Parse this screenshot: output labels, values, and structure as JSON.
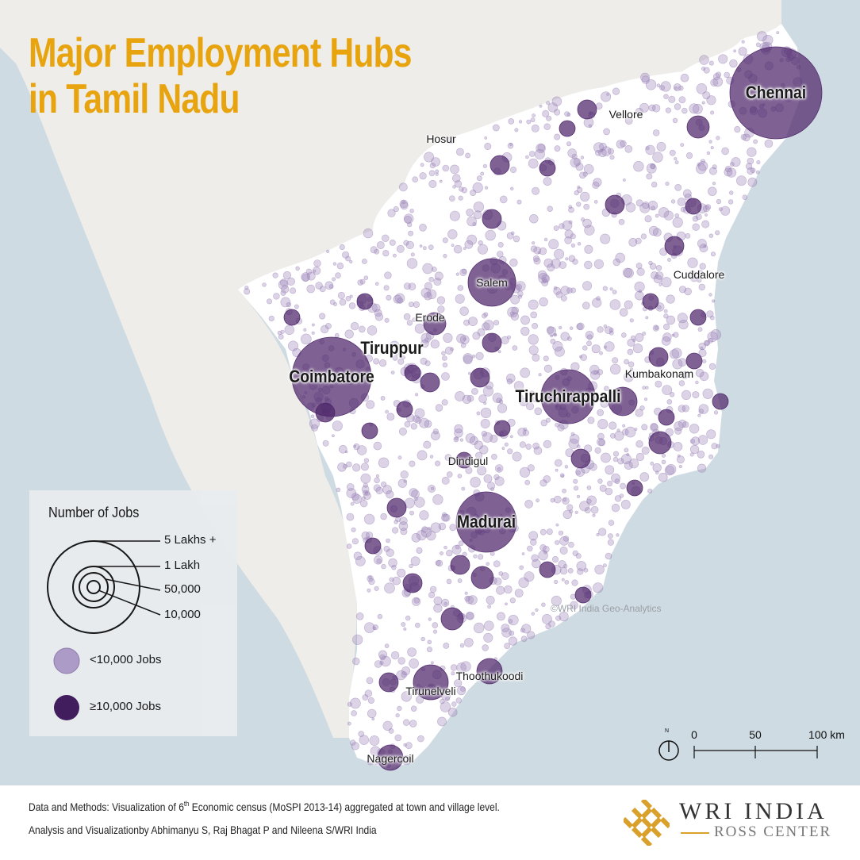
{
  "title": {
    "line1": "Major Employment Hubs",
    "line2": "in Tamil Nadu"
  },
  "colors": {
    "sea": "#cfdbe2",
    "neighbor_land": "#eeede9",
    "state_land": "#ffffff",
    "small_dot": "#9b84b8",
    "big_dot": "#4d2669",
    "title": "#e8a40f",
    "logo_gold": "#d9a12b"
  },
  "cities": [
    {
      "name": "Chennai",
      "tier": "big"
    },
    {
      "name": "Vellore",
      "tier": "small"
    },
    {
      "name": "Hosur",
      "tier": "small"
    },
    {
      "name": "Salem",
      "tier": "small"
    },
    {
      "name": "Cuddalore",
      "tier": "small"
    },
    {
      "name": "Erode",
      "tier": "small"
    },
    {
      "name": "Tiruppur",
      "tier": "big"
    },
    {
      "name": "Coimbatore",
      "tier": "big"
    },
    {
      "name": "Kumbakonam",
      "tier": "small"
    },
    {
      "name": "Tiruchirappalli",
      "tier": "big"
    },
    {
      "name": "Dindigul",
      "tier": "small"
    },
    {
      "name": "Madurai",
      "tier": "big"
    },
    {
      "name": "Thoothukoodi",
      "tier": "small"
    },
    {
      "name": "Tirunelveli",
      "tier": "small"
    },
    {
      "name": "Nagercoil",
      "tier": "small"
    }
  ],
  "legend": {
    "title": "Number of Jobs",
    "size_labels": [
      "5  Lakhs +",
      "1  Lakh",
      "50,000",
      "10,000"
    ],
    "small_label": "<10,000 Jobs",
    "big_label": "≥10,000 Jobs"
  },
  "watermark": "©WRI India Geo-Analytics",
  "scale": {
    "labels": [
      "0",
      "50",
      "100 km"
    ],
    "north": "N"
  },
  "footer": {
    "line1_pre": "Data and Methods: Visualization of 6",
    "line1_sup": "th",
    "line1_post": " Economic census (MoSPI 2013-14) aggregated at town and village level.",
    "line2": "Analysis and Visualizationby Abhimanyu S, Raj Bhagat P and Nileena S/WRI India"
  },
  "logo": {
    "name": "WRI INDIA",
    "sub": "ROSS CENTER"
  }
}
